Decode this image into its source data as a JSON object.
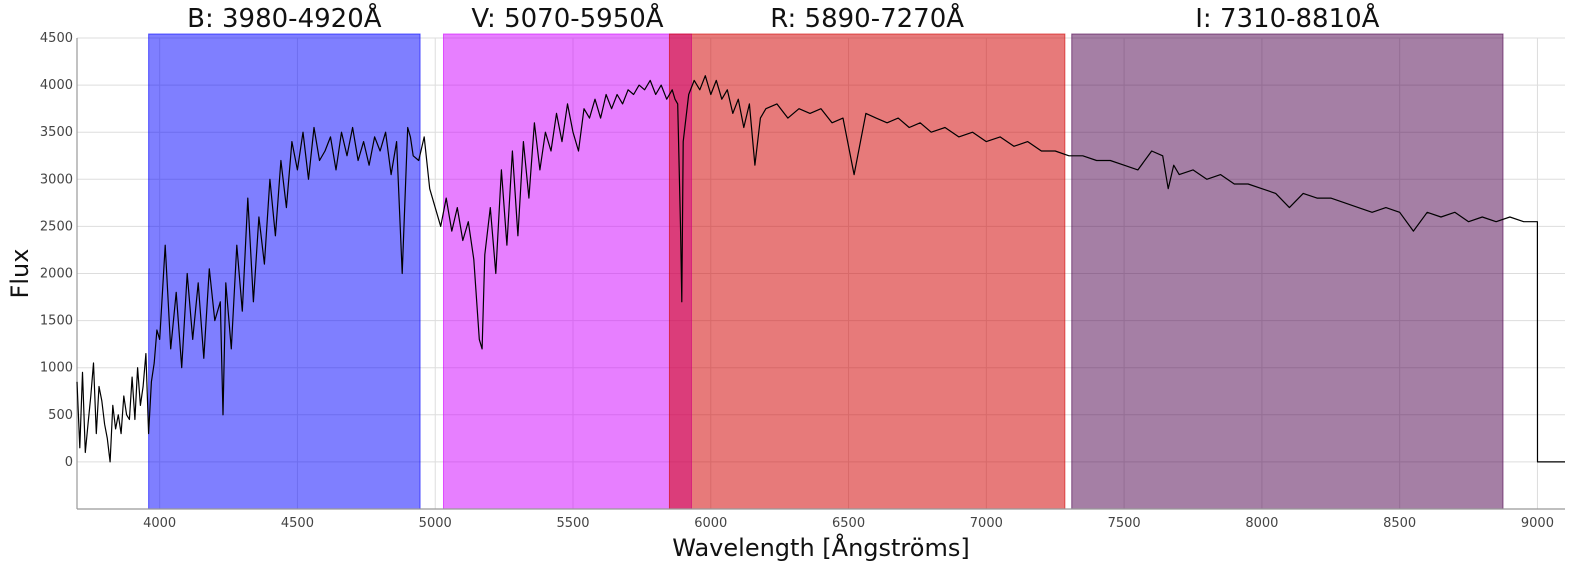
{
  "chart_data": {
    "type": "line",
    "xlabel": "Wavelength [Ångströms]",
    "ylabel": "Flux",
    "xlim": [
      3700,
      9100
    ],
    "ylim": [
      -500,
      4500
    ],
    "xticks": [
      4000,
      4500,
      5000,
      5500,
      6000,
      6500,
      7000,
      7500,
      8000,
      8500,
      9000
    ],
    "yticks": [
      0,
      500,
      1000,
      1500,
      2000,
      2500,
      3000,
      3500,
      4000,
      4500
    ],
    "grid": true,
    "bands": [
      {
        "label": "B: 3980-4920Å",
        "x0": 3960,
        "x1": 4945,
        "color": "#0000ff",
        "opacity": 0.5
      },
      {
        "label": "V: 5070-5950Å",
        "x0": 5030,
        "x1": 5930,
        "color": "#d000ff",
        "opacity": 0.5
      },
      {
        "label": "R: 5890-7270Å",
        "x0": 5850,
        "x1": 7285,
        "color": "#d10000",
        "opacity": 0.52
      },
      {
        "label": "I: 7310-8810Å",
        "x0": 7310,
        "x1": 8875,
        "color": "#4b004b",
        "opacity": 0.5
      }
    ],
    "series": [
      {
        "color": "#000000",
        "x": [
          3700,
          3710,
          3720,
          3730,
          3740,
          3750,
          3760,
          3770,
          3780,
          3790,
          3800,
          3810,
          3820,
          3830,
          3840,
          3850,
          3860,
          3870,
          3880,
          3890,
          3900,
          3910,
          3920,
          3930,
          3940,
          3950,
          3960,
          3970,
          3980,
          3990,
          4000,
          4020,
          4040,
          4060,
          4080,
          4100,
          4120,
          4140,
          4160,
          4180,
          4200,
          4220,
          4230,
          4240,
          4260,
          4280,
          4300,
          4320,
          4340,
          4360,
          4380,
          4400,
          4420,
          4440,
          4460,
          4480,
          4500,
          4520,
          4540,
          4560,
          4580,
          4600,
          4620,
          4640,
          4660,
          4680,
          4700,
          4720,
          4740,
          4760,
          4780,
          4800,
          4820,
          4840,
          4860,
          4880,
          4900,
          4910,
          4920,
          4940,
          4960,
          4980,
          5000,
          5020,
          5040,
          5060,
          5080,
          5100,
          5120,
          5140,
          5160,
          5170,
          5180,
          5200,
          5220,
          5240,
          5260,
          5280,
          5300,
          5320,
          5340,
          5360,
          5380,
          5400,
          5420,
          5440,
          5460,
          5480,
          5500,
          5520,
          5540,
          5560,
          5580,
          5600,
          5620,
          5640,
          5660,
          5680,
          5700,
          5720,
          5740,
          5760,
          5780,
          5800,
          5820,
          5840,
          5860,
          5870,
          5880,
          5890,
          5895,
          5900,
          5920,
          5940,
          5960,
          5980,
          6000,
          6020,
          6040,
          6060,
          6080,
          6100,
          6120,
          6140,
          6160,
          6180,
          6200,
          6240,
          6280,
          6320,
          6360,
          6400,
          6440,
          6480,
          6520,
          6563,
          6600,
          6640,
          6680,
          6720,
          6760,
          6800,
          6850,
          6900,
          6950,
          7000,
          7050,
          7100,
          7150,
          7200,
          7250,
          7300,
          7350,
          7400,
          7450,
          7500,
          7550,
          7600,
          7640,
          7660,
          7680,
          7700,
          7750,
          7800,
          7850,
          7900,
          7950,
          8000,
          8050,
          8100,
          8150,
          8200,
          8250,
          8300,
          8350,
          8400,
          8450,
          8500,
          8550,
          8600,
          8650,
          8700,
          8750,
          8800,
          8850,
          8900,
          8950,
          9000,
          9000.1,
          9100
        ],
        "y": [
          850,
          150,
          950,
          100,
          400,
          700,
          1050,
          300,
          800,
          650,
          400,
          250,
          0,
          600,
          350,
          500,
          300,
          700,
          500,
          450,
          900,
          450,
          1000,
          600,
          800,
          1150,
          300,
          850,
          1050,
          1400,
          1300,
          2300,
          1200,
          1800,
          1000,
          2000,
          1300,
          1900,
          1100,
          2050,
          1500,
          1700,
          500,
          1900,
          1200,
          2300,
          1600,
          2800,
          1700,
          2600,
          2100,
          3000,
          2400,
          3200,
          2700,
          3400,
          3100,
          3500,
          3000,
          3550,
          3200,
          3300,
          3450,
          3100,
          3500,
          3250,
          3550,
          3200,
          3400,
          3150,
          3450,
          3300,
          3500,
          3050,
          3400,
          2000,
          3550,
          3450,
          3250,
          3200,
          3450,
          2900,
          2700,
          2500,
          2800,
          2450,
          2700,
          2350,
          2550,
          2150,
          1300,
          1200,
          2200,
          2700,
          2000,
          3100,
          2300,
          3300,
          2400,
          3400,
          2800,
          3600,
          3100,
          3500,
          3300,
          3700,
          3400,
          3800,
          3500,
          3300,
          3750,
          3650,
          3850,
          3650,
          3900,
          3750,
          3900,
          3800,
          3950,
          3900,
          4000,
          3950,
          4050,
          3900,
          4000,
          3850,
          3950,
          3850,
          3800,
          2500,
          1700,
          3400,
          3900,
          4050,
          3950,
          4100,
          3900,
          4050,
          3850,
          3950,
          3700,
          3850,
          3550,
          3800,
          3150,
          3650,
          3750,
          3800,
          3650,
          3750,
          3700,
          3750,
          3600,
          3650,
          3050,
          3700,
          3650,
          3600,
          3650,
          3550,
          3600,
          3500,
          3550,
          3450,
          3500,
          3400,
          3450,
          3350,
          3400,
          3300,
          3300,
          3250,
          3250,
          3200,
          3200,
          3150,
          3100,
          3300,
          3250,
          2900,
          3150,
          3050,
          3100,
          3000,
          3050,
          2950,
          2950,
          2900,
          2850,
          2700,
          2850,
          2800,
          2800,
          2750,
          2700,
          2650,
          2700,
          2650,
          2450,
          2650,
          2600,
          2650,
          2550,
          2600,
          2550,
          2600,
          2550,
          2550,
          0,
          0
        ]
      }
    ]
  }
}
